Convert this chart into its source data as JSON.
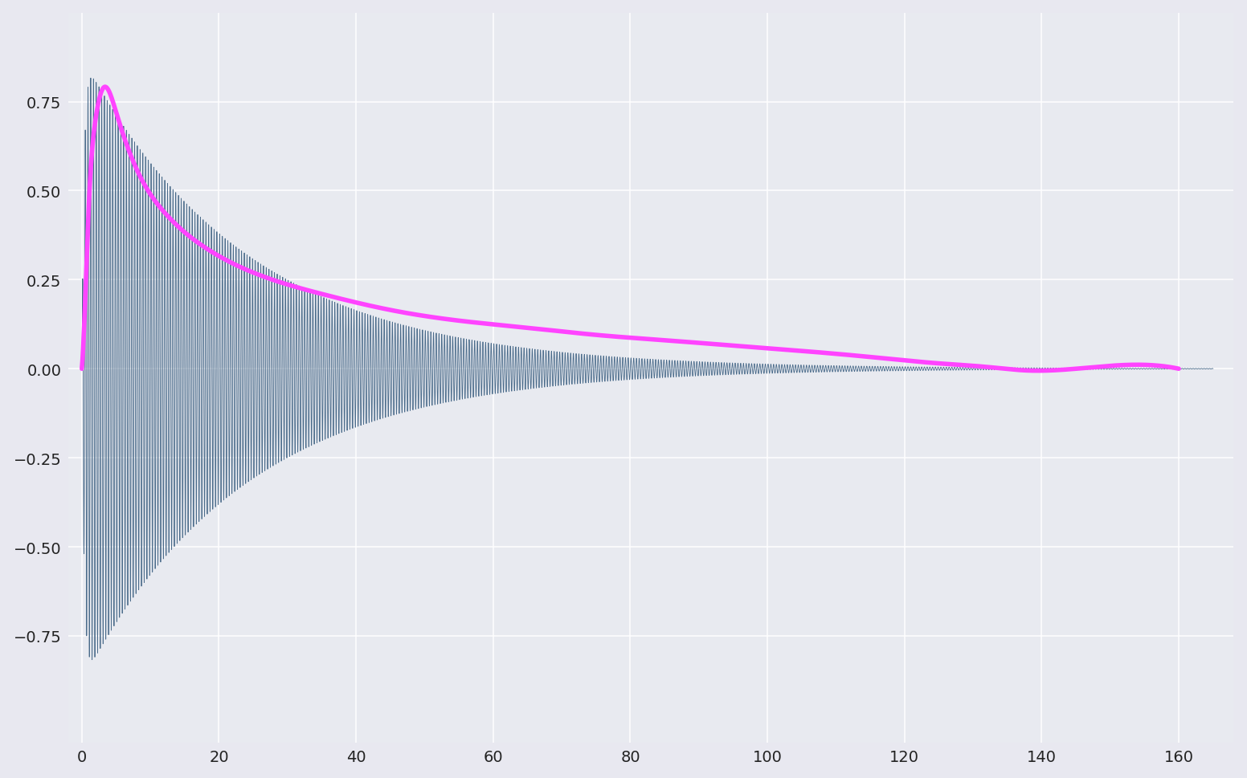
{
  "background_color": "#e8e8f0",
  "axes_background": "#e8eaf0",
  "waveform_color": "#4a6b8a",
  "envelope_color": "#ff44ff",
  "envelope_linewidth": 4.0,
  "waveform_linewidth": 0.6,
  "xlim": [
    -2,
    168
  ],
  "ylim": [
    -1.05,
    1.0
  ],
  "xticks": [
    0,
    20,
    40,
    60,
    80,
    100,
    120,
    140,
    160
  ],
  "yticks": [
    -0.75,
    -0.5,
    -0.25,
    0.0,
    0.25,
    0.5,
    0.75
  ],
  "tick_fontsize": 14,
  "figsize": [
    15.52,
    9.7
  ],
  "dpi": 100,
  "waveform_freq": 2.5,
  "waveform_decay": 0.042,
  "waveform_amplitude": 0.88,
  "envelope_points_x": [
    0.0,
    0.3,
    1.0,
    2.0,
    3.2,
    5.0,
    8.0,
    12.0,
    18.0,
    25.0,
    35.0,
    45.0,
    55.0,
    65.0,
    75.0,
    85.0,
    95.0,
    105.0,
    115.0,
    125.0,
    132.0,
    138.0,
    145.0,
    160.0
  ],
  "envelope_points_y": [
    0.0,
    0.1,
    0.45,
    0.7,
    0.79,
    0.72,
    0.56,
    0.44,
    0.34,
    0.27,
    0.21,
    0.165,
    0.135,
    0.115,
    0.095,
    0.08,
    0.065,
    0.05,
    0.033,
    0.015,
    0.005,
    -0.005,
    0.0,
    0.0
  ]
}
